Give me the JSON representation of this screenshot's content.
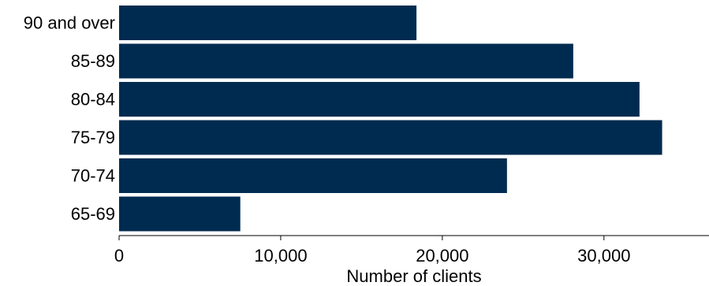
{
  "chart_data": {
    "type": "bar",
    "orientation": "horizontal",
    "categories": [
      "90 and over",
      "85-89",
      "80-84",
      "75-79",
      "70-74",
      "65-69"
    ],
    "values": [
      18400,
      28100,
      32200,
      33600,
      24000,
      7500
    ],
    "xlabel": "Number of clients",
    "ylabel": "",
    "xlim": [
      0,
      36500
    ],
    "xticks": [
      0,
      10000,
      20000,
      30000
    ],
    "xtick_labels": [
      "0",
      "10,000",
      "20,000",
      "30,000"
    ],
    "grid": false,
    "bar_color": "#002b50"
  }
}
